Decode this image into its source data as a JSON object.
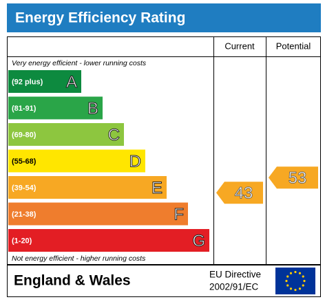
{
  "chart_data": {
    "type": "epc",
    "title": "Energy Efficiency Rating",
    "columns": [
      "Current",
      "Potential"
    ],
    "top_note": "Very energy efficient - lower running costs",
    "bottom_note": "Not energy efficient - higher running costs",
    "bands": [
      {
        "range": "(92 plus)",
        "letter": "A",
        "color": "#0d8a3f"
      },
      {
        "range": "(81-91)",
        "letter": "B",
        "color": "#2aa548"
      },
      {
        "range": "(69-80)",
        "letter": "C",
        "color": "#8dc63f"
      },
      {
        "range": "(55-68)",
        "letter": "D",
        "color": "#ffe600"
      },
      {
        "range": "(39-54)",
        "letter": "E",
        "color": "#f7a823"
      },
      {
        "range": "(21-38)",
        "letter": "F",
        "color": "#ef7d2d"
      },
      {
        "range": "(1-20)",
        "letter": "G",
        "color": "#e31e24"
      }
    ],
    "current": 43,
    "potential": 53,
    "region": "England & Wales",
    "directive": [
      "EU Directive",
      "2002/91/EC"
    ]
  }
}
